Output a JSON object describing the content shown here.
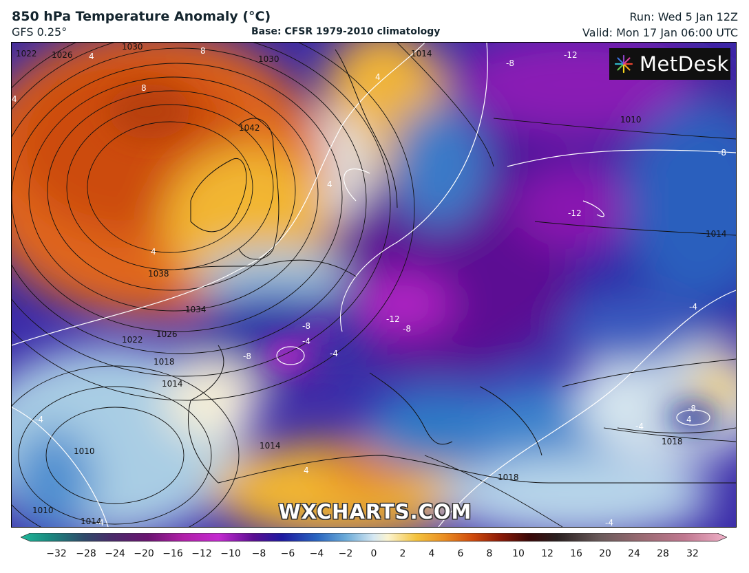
{
  "header": {
    "title": "850 hPa Temperature Anomaly (°C)",
    "model": "GFS 0.25°",
    "base": "Base: CFSR 1979-2010 climatology",
    "run": "Run: Wed 5 Jan 12Z",
    "valid": "Valid: Mon 17 Jan 06:00 UTC"
  },
  "logo": {
    "text": "MetDesk",
    "icon": "pinwheel-icon"
  },
  "watermark": "WXCHARTS.COM",
  "colors": {
    "warm": "#e0661a",
    "hot": "#c24a0c",
    "mild": "#f2b632",
    "neutral": "#f7f3df",
    "cool": "#a9cde4",
    "cold": "#2f6fbf",
    "colder": "#241a9c",
    "coldest": "#5b0d8f",
    "extreme": "#b31fc4"
  },
  "colorbar": {
    "ticks": [
      "−32",
      "−28",
      "−24",
      "−20",
      "−16",
      "−12",
      "−10",
      "−8",
      "−6",
      "−4",
      "−2",
      "0",
      "2",
      "4",
      "6",
      "8",
      "10",
      "12",
      "16",
      "20",
      "24",
      "28",
      "32"
    ]
  },
  "isobar_labels": [
    "1022",
    "1026",
    "1030",
    "1030",
    "1014",
    "1042",
    "1038",
    "1034",
    "1026",
    "1022",
    "1018",
    "1014",
    "1010",
    "1014",
    "1010",
    "1014",
    "1018",
    "1018",
    "1010",
    "1014"
  ],
  "anomaly_labels": [
    "4",
    "8",
    "8",
    "4",
    "4",
    "4",
    "-8",
    "-12",
    "-8",
    "-12",
    "-4",
    "-8",
    "-12",
    "-8",
    "-8",
    "-4",
    "-4",
    "-4",
    "-8",
    "-4",
    "-4",
    "4",
    "4",
    "-4",
    "4"
  ]
}
